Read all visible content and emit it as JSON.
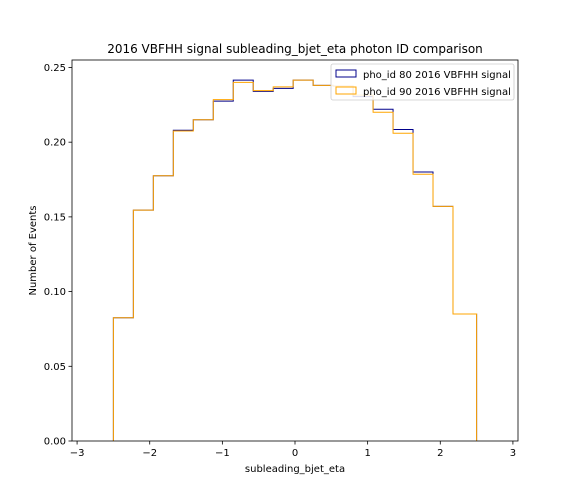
{
  "chart_data": {
    "type": "histogram",
    "title": "2016 VBFHH signal subleading_bjet_eta photon ID comparison",
    "xlabel": "subleading_bjet_eta",
    "ylabel": "Number of Events",
    "xlim": [
      -3.07,
      3.07
    ],
    "ylim": [
      0.0,
      0.255
    ],
    "xticks": [
      -3,
      -2,
      -1,
      0,
      1,
      2,
      3
    ],
    "xtick_labels": [
      "−3",
      "−2",
      "−1",
      "0",
      "1",
      "2",
      "3"
    ],
    "yticks": [
      0.0,
      0.05,
      0.1,
      0.15,
      0.2,
      0.25
    ],
    "ytick_labels": [
      "0.00",
      "0.05",
      "0.10",
      "0.15",
      "0.20",
      "0.25"
    ],
    "bin_edges": [
      -2.5,
      -2.225,
      -1.95,
      -1.675,
      -1.4,
      -1.125,
      -0.85,
      -0.575,
      -0.3,
      -0.025,
      0.25,
      0.525,
      0.8,
      1.075,
      1.35,
      1.625,
      1.9,
      2.175,
      2.5
    ],
    "legend_position": "top-right",
    "grid": false,
    "series": [
      {
        "name": "pho_id 80 2016 VBFHH signal",
        "color": "#00008b",
        "values": [
          0.0825,
          0.1545,
          0.1775,
          0.208,
          0.215,
          0.2275,
          0.2415,
          0.234,
          0.236,
          0.2415,
          0.238,
          0.2375,
          0.2305,
          0.222,
          0.2085,
          0.18,
          0.157,
          0.085
        ]
      },
      {
        "name": "pho_id 90 2016 VBFHH signal",
        "color": "#ffa500",
        "values": [
          0.0825,
          0.1545,
          0.1775,
          0.2075,
          0.215,
          0.2285,
          0.24,
          0.2345,
          0.237,
          0.2415,
          0.238,
          0.2375,
          0.2315,
          0.22,
          0.206,
          0.1785,
          0.157,
          0.085
        ]
      }
    ]
  }
}
